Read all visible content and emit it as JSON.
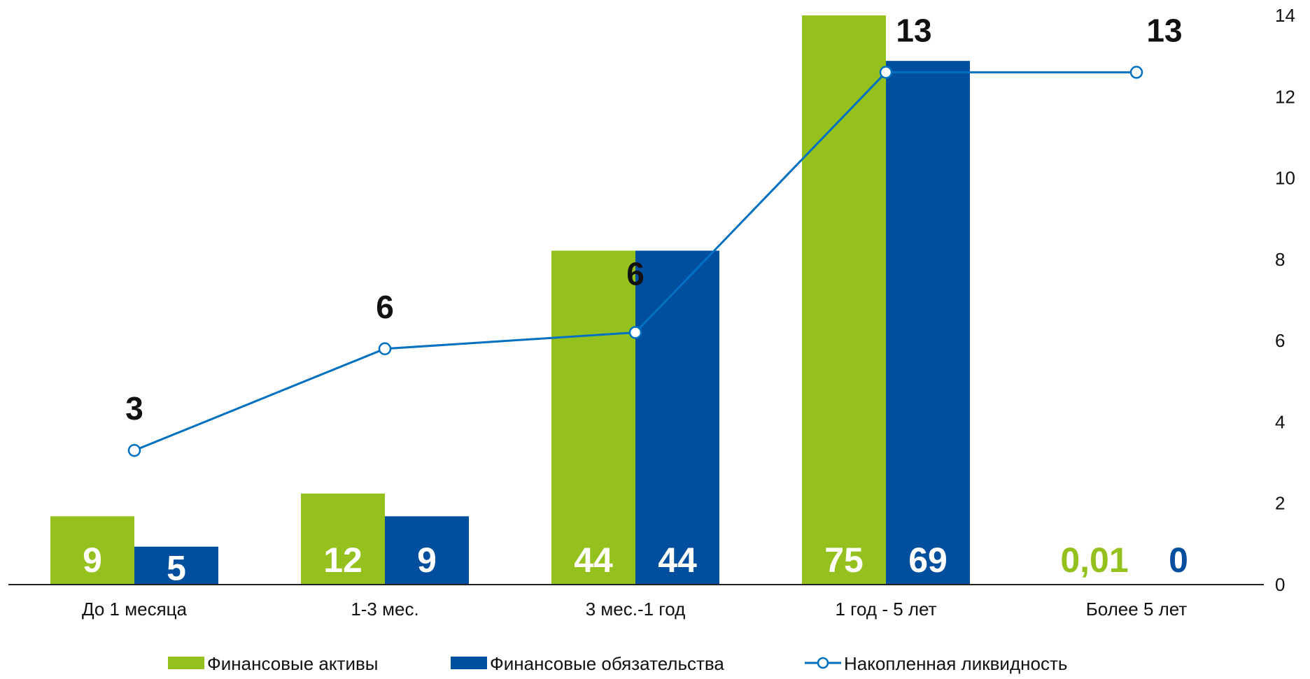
{
  "chart_data": {
    "type": "bar",
    "categories": [
      "До 1 месяца",
      "1-3 мес.",
      "3 мес.-1 год",
      "1 год - 5 лет",
      "Более 5 лет"
    ],
    "series": [
      {
        "name": "Финансовые активы",
        "type": "bar",
        "axis": "left",
        "color": "#95c11f",
        "values": [
          9,
          12,
          44,
          75,
          0.01
        ],
        "labels": [
          "9",
          "12",
          "44",
          "75",
          "0,01"
        ]
      },
      {
        "name": "Финансовые обязательства",
        "type": "bar",
        "axis": "left",
        "color": "#004f9f",
        "values": [
          5,
          9,
          44,
          69,
          0
        ],
        "labels": [
          "5",
          "9",
          "44",
          "69",
          "0"
        ]
      },
      {
        "name": "Накопленная ликвидность",
        "type": "line",
        "axis": "right",
        "color": "#0070c0",
        "values": [
          3.3,
          5.8,
          6.2,
          12.6,
          12.6
        ],
        "labels": [
          "3",
          "6",
          "6",
          "13",
          "13"
        ]
      }
    ],
    "left_axis": {
      "ylim": [
        0,
        75
      ],
      "visible": false
    },
    "right_axis": {
      "ylim": [
        0,
        14
      ],
      "ticks": [
        "0",
        "2",
        "4",
        "6",
        "8",
        "10",
        "12",
        "14"
      ]
    },
    "grid": false,
    "legend_position": "bottom"
  }
}
